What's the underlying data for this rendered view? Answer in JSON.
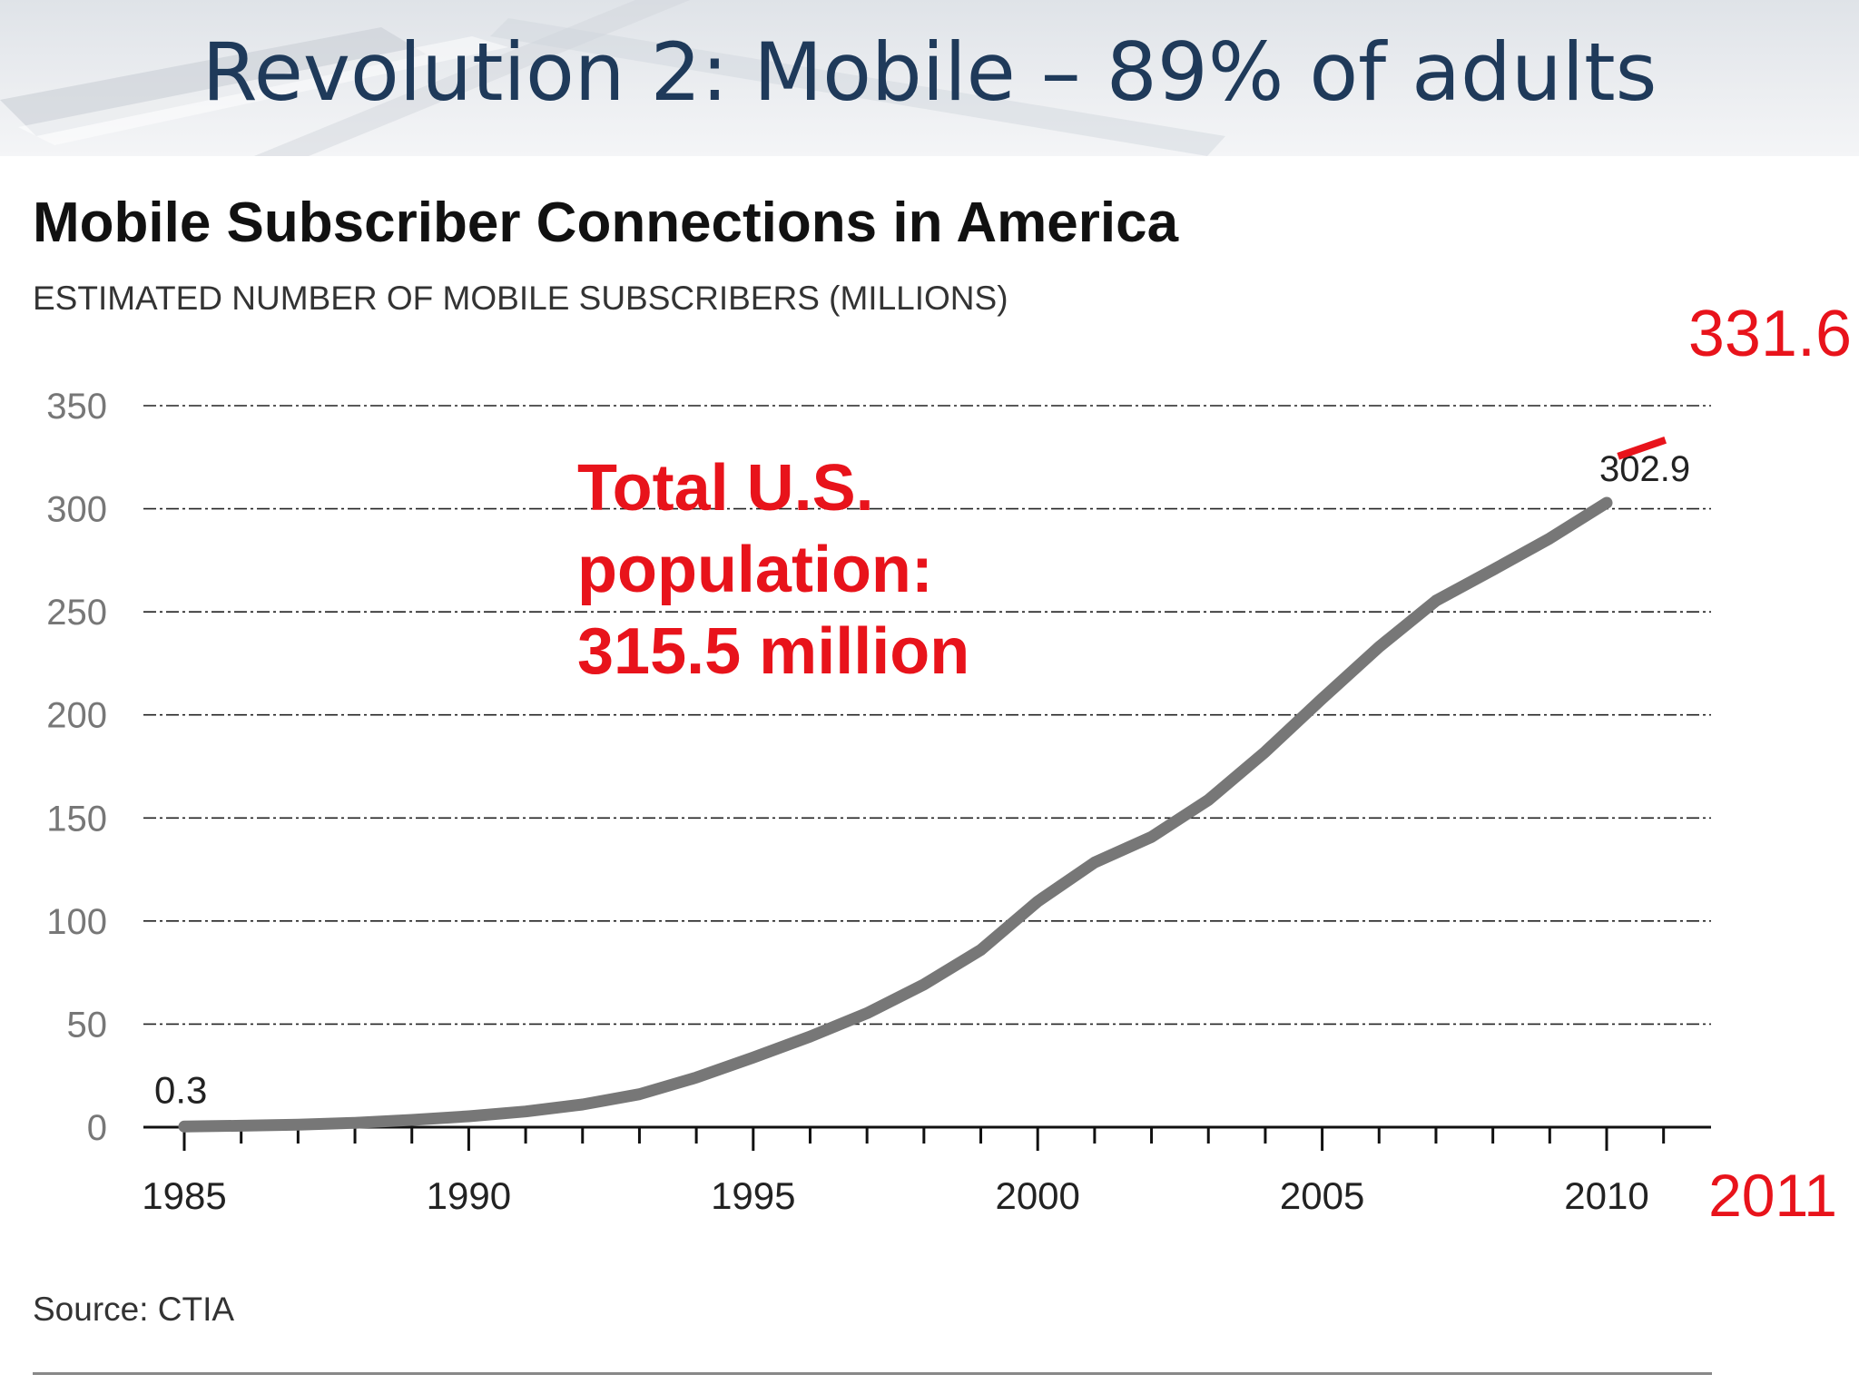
{
  "slide": {
    "title": "Revolution 2: Mobile – 89% of adults"
  },
  "chart_data": {
    "type": "line",
    "title": "Mobile Subscriber Connections in America",
    "subtitle": "ESTIMATED NUMBER OF MOBILE SUBSCRIBERS (MILLIONS)",
    "source": "Source: CTIA",
    "xlabel": "",
    "ylabel": "",
    "ylim": [
      0,
      350
    ],
    "xlim": [
      1985,
      2011
    ],
    "y_ticks": [
      0,
      50,
      100,
      150,
      200,
      250,
      300,
      350
    ],
    "x_tick_labels": [
      "1985",
      "1990",
      "1995",
      "2000",
      "2005",
      "2010"
    ],
    "grid": true,
    "colors": {
      "line": "#777777",
      "annotation": "#e8131b",
      "grid": "#222222"
    },
    "series": [
      {
        "x": [
          1985,
          1986,
          1987,
          1988,
          1989,
          1990,
          1991,
          1992,
          1993,
          1994,
          1995,
          1996,
          1997,
          1998,
          1999,
          2000,
          2001,
          2002,
          2003,
          2004,
          2005,
          2006,
          2007,
          2008,
          2009,
          2010
        ],
        "values": [
          0.3,
          0.7,
          1.2,
          2.1,
          3.5,
          5.3,
          7.6,
          11.0,
          16.0,
          24.1,
          33.8,
          44.0,
          55.3,
          69.2,
          86.0,
          109.5,
          128.4,
          140.8,
          158.7,
          182.1,
          207.9,
          233.0,
          255.4,
          270.3,
          285.6,
          302.9
        ]
      }
    ],
    "data_labels": [
      {
        "x": 1985,
        "y": 0.3,
        "text": "0.3"
      },
      {
        "x": 2010,
        "y": 302.9,
        "text": "302.9"
      }
    ],
    "annotations": {
      "population_lines": [
        "Total U.S.",
        "population:",
        "315.5 million"
      ],
      "extension": {
        "x": 2011,
        "y": 331.6,
        "value_label": "331.6",
        "year_label": "2011"
      }
    }
  }
}
